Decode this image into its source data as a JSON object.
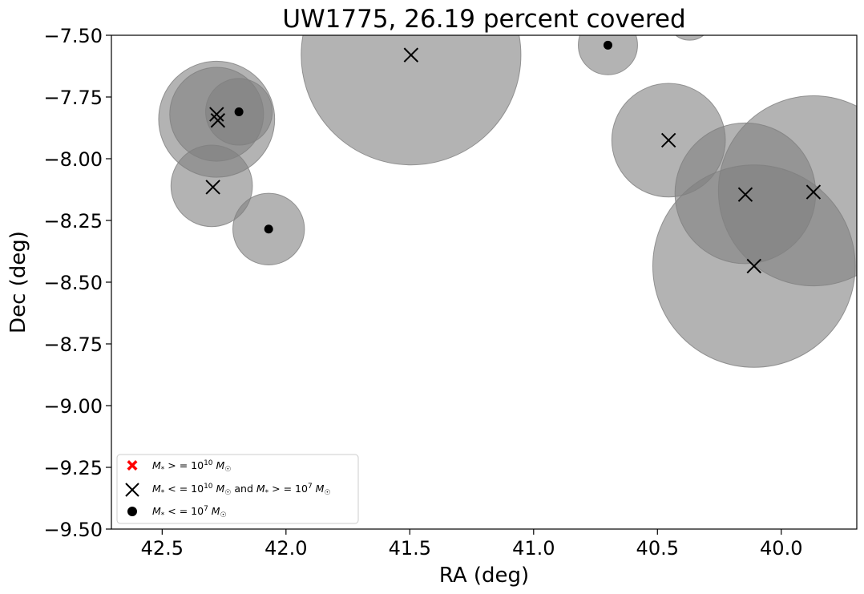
{
  "chart_data": {
    "type": "scatter",
    "title": "UW1775, 26.19 percent covered",
    "xlabel": "RA (deg)",
    "ylabel": "Dec (deg)",
    "xlim": [
      42.705,
      39.695
    ],
    "ylim": [
      -9.5,
      -7.5
    ],
    "x_inverted": true,
    "xticks": [
      42.5,
      42.0,
      41.5,
      41.0,
      40.5,
      40.0
    ],
    "xtick_labels": [
      "42.5",
      "42.0",
      "41.5",
      "41.0",
      "40.5",
      "40.0"
    ],
    "yticks": [
      -7.5,
      -7.75,
      -8.0,
      -8.25,
      -8.5,
      -8.75,
      -9.0,
      -9.25,
      -9.5
    ],
    "ytick_labels": [
      "−7.50",
      "−7.75",
      "−8.00",
      "−8.25",
      "−8.50",
      "−8.75",
      "−9.00",
      "−9.25",
      "−9.50"
    ],
    "grid": false,
    "legend_position": "lower-left",
    "colors": {
      "circle_fill": "#808080",
      "circle_opacity": 0.6,
      "high_mass": "#ff0000",
      "mid_mass": "#000000",
      "low_mass": "#000000"
    },
    "circles": [
      {
        "ra": 42.28,
        "dec": -7.84,
        "radius": 0.235
      },
      {
        "ra": 42.28,
        "dec": -7.82,
        "radius": 0.19
      },
      {
        "ra": 42.19,
        "dec": -7.81,
        "radius": 0.135
      },
      {
        "ra": 42.3,
        "dec": -8.11,
        "radius": 0.165
      },
      {
        "ra": 42.07,
        "dec": -8.285,
        "radius": 0.145
      },
      {
        "ra": 41.495,
        "dec": -7.58,
        "radius": 0.445
      },
      {
        "ra": 40.7,
        "dec": -7.54,
        "radius": 0.12
      },
      {
        "ra": 40.37,
        "dec": -7.43,
        "radius": 0.09
      },
      {
        "ra": 40.455,
        "dec": -7.925,
        "radius": 0.23
      },
      {
        "ra": 40.145,
        "dec": -8.14,
        "radius": 0.285
      },
      {
        "ra": 39.87,
        "dec": -8.13,
        "radius": 0.385
      },
      {
        "ra": 40.11,
        "dec": -8.435,
        "radius": 0.41
      }
    ],
    "series": [
      {
        "name": "$M_* >= 10^{10} M_\\odot$",
        "marker": "X",
        "color": "#ff0000",
        "points": []
      },
      {
        "name": "$M_* <= 10^{10} M_\\odot$ and $M_* >= 10^{7} M_\\odot$",
        "marker": "x",
        "color": "#000000",
        "points": [
          [
            42.28,
            -7.82
          ],
          [
            42.275,
            -7.845
          ],
          [
            42.295,
            -8.115
          ],
          [
            41.495,
            -7.58
          ],
          [
            40.455,
            -7.925
          ],
          [
            40.145,
            -8.145
          ],
          [
            40.11,
            -8.435
          ],
          [
            39.87,
            -8.135
          ]
        ]
      },
      {
        "name": "$M_* <= 10^{7} M_\\odot$",
        "marker": "o",
        "color": "#000000",
        "points": [
          [
            42.19,
            -7.81
          ],
          [
            42.07,
            -8.285
          ],
          [
            40.7,
            -7.54
          ]
        ]
      }
    ]
  }
}
